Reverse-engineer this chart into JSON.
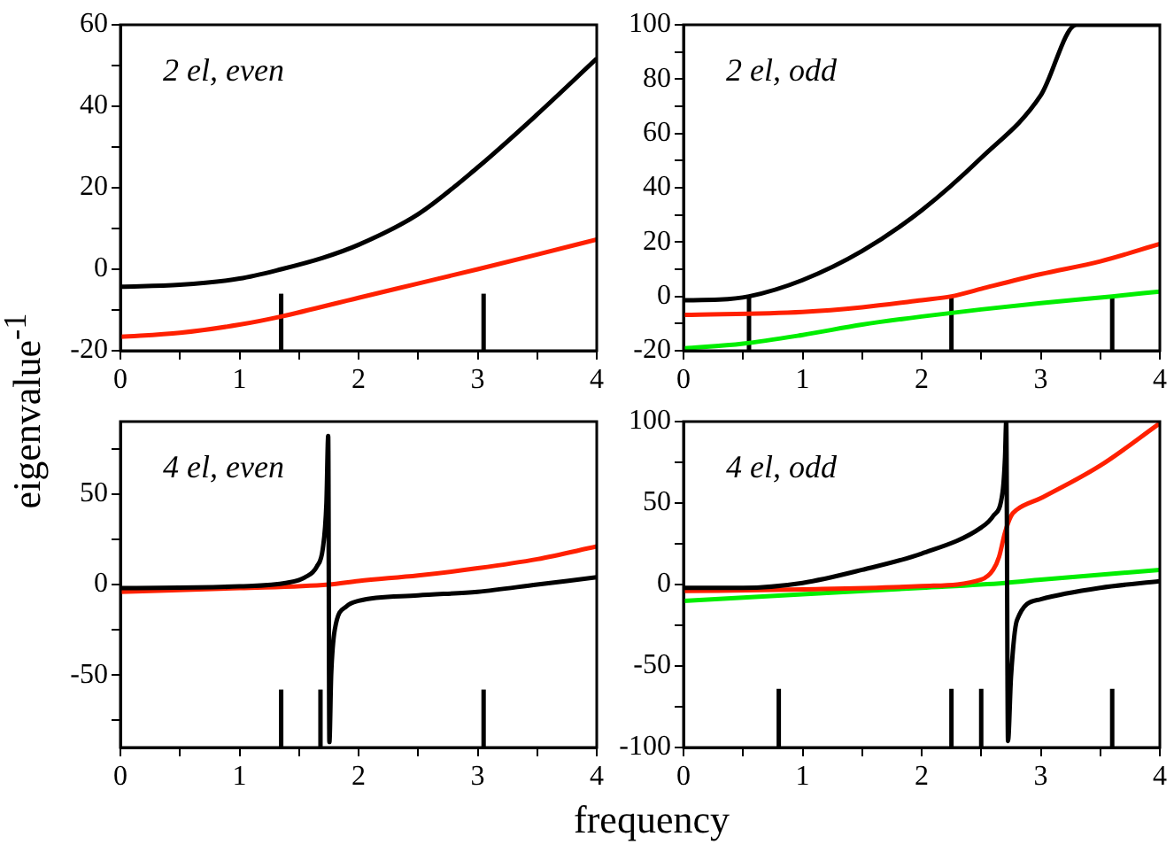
{
  "chart_data": [
    {
      "type": "line",
      "ylabel": "eigenvalue$^{-1}$",
      "annotations": [
        "2 el, even"
      ],
      "marker": "none",
      "xlim": [
        0,
        4
      ],
      "xticks": [
        0,
        {
          "value": 0.5,
          "label": null
        },
        1,
        {
          "value": 1.5,
          "label": null
        },
        2,
        {
          "value": 2.5,
          "label": null
        },
        3,
        {
          "value": 3.5,
          "label": null
        },
        4
      ],
      "ylim": [
        -20,
        60
      ],
      "yticks": [
        -20,
        {
          "value": -10,
          "label": null
        },
        0,
        {
          "value": 10,
          "label": null
        },
        20,
        {
          "value": 30,
          "label": null
        },
        40,
        {
          "value": 50,
          "label": null
        },
        60
      ],
      "series": [
        {
          "color": "#000000",
          "x": [
            0,
            0.5,
            1,
            1.35,
            1.7,
            2,
            2.5,
            3,
            3.5,
            4
          ],
          "values": [
            -4.3,
            -3.8,
            -2.3,
            0,
            2.8,
            6,
            13.5,
            25,
            38,
            51.7
          ]
        },
        {
          "color": "#ff2000",
          "x": [
            0,
            0.5,
            1,
            1.35,
            2,
            2.5,
            3,
            3.5,
            4
          ],
          "values": [
            -16.6,
            -15.6,
            -13.6,
            -11.6,
            -7,
            -3.5,
            0,
            3.6,
            7.3
          ]
        },
        {
          "color": "#000000",
          "x": [
            1.35,
            1.35
          ],
          "values": [
            -20,
            -6
          ]
        },
        {
          "color": "#000000",
          "x": [
            3.05,
            3.05
          ],
          "values": [
            -20,
            -6
          ]
        }
      ]
    },
    {
      "type": "line",
      "annotations": [
        "2 el, odd"
      ],
      "marker": "none",
      "xlim": [
        0,
        4
      ],
      "xticks": [
        0,
        {
          "value": 0.5,
          "label": null
        },
        1,
        {
          "value": 1.5,
          "label": null
        },
        2,
        {
          "value": 2.5,
          "label": null
        },
        3,
        {
          "value": 3.5,
          "label": null
        },
        4
      ],
      "ylim": [
        -20,
        100
      ],
      "yticks": [
        -20,
        {
          "value": -10,
          "label": null
        },
        0,
        {
          "value": 10,
          "label": null
        },
        20,
        {
          "value": 30,
          "label": null
        },
        40,
        {
          "value": 50,
          "label": null
        },
        60,
        {
          "value": 70,
          "label": null
        },
        80,
        {
          "value": 90,
          "label": null
        },
        100
      ],
      "series": [
        {
          "color": "#000000",
          "x": [
            0,
            0.3,
            0.55,
            1,
            1.5,
            2,
            2.5,
            3,
            3.3,
            4
          ],
          "values": [
            -1.4,
            -1.2,
            0,
            6,
            16.7,
            31.7,
            51,
            74,
            100,
            100
          ]
        },
        {
          "color": "#ff2000",
          "x": [
            0,
            1,
            1.5,
            2,
            2.25,
            2.5,
            3,
            3.5,
            4
          ],
          "values": [
            -6.8,
            -5.7,
            -4,
            -1.4,
            0,
            2.8,
            8.2,
            12.9,
            19.3
          ]
        },
        {
          "color": "#00ee00",
          "x": [
            0,
            0.5,
            1,
            1.5,
            2,
            2.5,
            3,
            3.6,
            4
          ],
          "values": [
            -19.2,
            -17.4,
            -14.2,
            -10.4,
            -7.4,
            -4.8,
            -2.5,
            0,
            1.8
          ]
        },
        {
          "color": "#000000",
          "x": [
            0.55,
            0.55
          ],
          "values": [
            -20,
            0
          ]
        },
        {
          "color": "#000000",
          "x": [
            2.25,
            2.25
          ],
          "values": [
            -20,
            0
          ]
        },
        {
          "color": "#000000",
          "x": [
            3.6,
            3.6
          ],
          "values": [
            -20,
            0
          ]
        }
      ]
    },
    {
      "type": "line",
      "xlabel": "frequency",
      "annotations": [
        "4 el, even"
      ],
      "marker": "none",
      "xlim": [
        0,
        4
      ],
      "xticks": [
        0,
        {
          "value": 0.5,
          "label": null
        },
        1,
        {
          "value": 1.5,
          "label": null
        },
        2,
        {
          "value": 2.5,
          "label": null
        },
        3,
        {
          "value": 3.5,
          "label": null
        },
        4
      ],
      "ylim": [
        -90,
        90
      ],
      "yticks": [
        {
          "value": -75,
          "label": null
        },
        -50,
        {
          "value": -25,
          "label": null
        },
        0,
        {
          "value": 25,
          "label": null
        },
        50,
        {
          "value": 75,
          "label": null
        }
      ],
      "series": [
        {
          "color": "#000000",
          "x": [
            0,
            1,
            1.4,
            1.55,
            1.65,
            1.7,
            1.73,
            1.745,
            1.755,
            1.77,
            1.8,
            1.9,
            2,
            2.5,
            3,
            3.5,
            4
          ],
          "values": [
            -2,
            -1,
            1,
            4,
            10,
            20,
            45,
            82,
            -87,
            -50,
            -25,
            -12,
            -9,
            -6,
            -4,
            0,
            4
          ]
        },
        {
          "color": "#ff2000",
          "x": [
            0,
            1,
            1.75,
            2,
            2.5,
            3,
            3.5,
            4
          ],
          "values": [
            -4,
            -2,
            0,
            2,
            5,
            9,
            14,
            21
          ]
        },
        {
          "color": "#000000",
          "x": [
            1.35,
            1.35
          ],
          "values": [
            -90,
            -58
          ]
        },
        {
          "color": "#000000",
          "x": [
            1.68,
            1.68
          ],
          "values": [
            -90,
            -58
          ]
        },
        {
          "color": "#000000",
          "x": [
            3.05,
            3.05
          ],
          "values": [
            -90,
            -58
          ]
        }
      ]
    },
    {
      "type": "line",
      "annotations": [
        "4 el, odd"
      ],
      "marker": "none",
      "xlim": [
        0,
        4
      ],
      "xticks": [
        0,
        {
          "value": 0.5,
          "label": null
        },
        1,
        {
          "value": 1.5,
          "label": null
        },
        2,
        {
          "value": 2.5,
          "label": null
        },
        3,
        {
          "value": 3.5,
          "label": null
        },
        4
      ],
      "ylim": [
        -100,
        100
      ],
      "yticks": [
        -100,
        {
          "value": -75,
          "label": null
        },
        -50,
        {
          "value": -25,
          "label": null
        },
        0,
        {
          "value": 25,
          "label": null
        },
        50,
        {
          "value": 75,
          "label": null
        },
        100
      ],
      "series": [
        {
          "color": "#000000",
          "x": [
            0,
            0.5,
            1,
            1.5,
            2,
            2.5,
            2.6,
            2.68,
            2.7,
            2.71,
            2.725,
            2.75,
            2.8,
            3,
            3.5,
            4
          ],
          "values": [
            -2,
            -2,
            1,
            9,
            19,
            35,
            42,
            57,
            78,
            100,
            -96,
            -57,
            -22,
            -9,
            -2,
            2
          ]
        },
        {
          "color": "#ff2000",
          "x": [
            0,
            1,
            2,
            2.5,
            2.6,
            2.65,
            2.7,
            2.75,
            2.8,
            3,
            3.5,
            4
          ],
          "values": [
            -4,
            -3,
            -1,
            3,
            9,
            17,
            32,
            42,
            46,
            53,
            73,
            99
          ]
        },
        {
          "color": "#00ee00",
          "x": [
            0,
            1,
            2,
            2.7,
            3,
            4
          ],
          "values": [
            -10,
            -6,
            -2,
            1,
            3,
            9
          ]
        },
        {
          "color": "#000000",
          "x": [
            0.8,
            0.8
          ],
          "values": [
            -100,
            -64
          ]
        },
        {
          "color": "#000000",
          "x": [
            2.25,
            2.25
          ],
          "values": [
            -100,
            -64
          ]
        },
        {
          "color": "#000000",
          "x": [
            2.5,
            2.5
          ],
          "values": [
            -100,
            -64
          ]
        },
        {
          "color": "#000000",
          "x": [
            3.6,
            3.6
          ],
          "values": [
            -100,
            -64
          ]
        }
      ]
    }
  ]
}
